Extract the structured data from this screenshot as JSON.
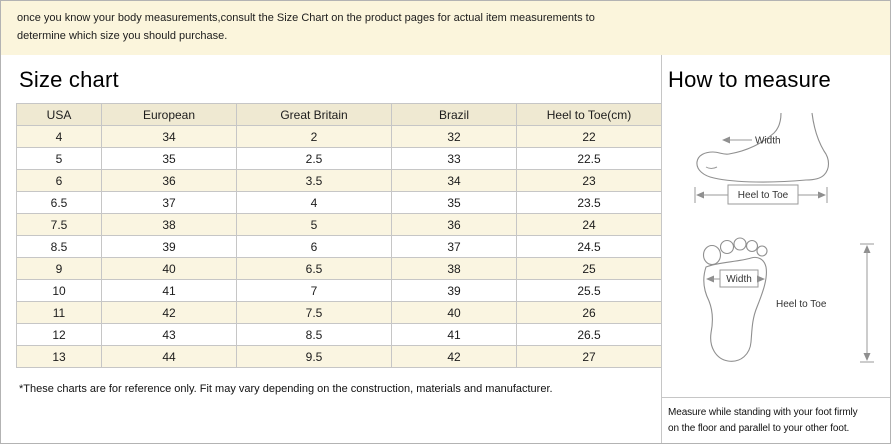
{
  "colors": {
    "note_bg": "#fbf5dc",
    "header_bg": "#efe9d2",
    "alt_row_bg": "#faf5e1",
    "border": "#c6c6c6"
  },
  "top_note": {
    "lines": [
      "once you know your body measurements,consult the Size Chart on the product pages for actual item measurements to",
      "determine which size you should purchase."
    ]
  },
  "size_chart": {
    "title": "Size chart",
    "footnote": "*These charts are for reference only. Fit may vary depending on the construction, materials and manufacturer."
  },
  "how_to_measure": {
    "title": "How to measure",
    "diagram_labels": {
      "side_width": "Width",
      "side_heel_to_toe": "Heel to Toe",
      "bottom_width": "Width",
      "bottom_heel_to_toe": "Heel to Toe"
    },
    "instruction_lines": [
      "Measure while standing with your foot firmly",
      "on the floor and parallel to your other foot."
    ]
  },
  "chart_data": {
    "type": "table",
    "title": "Size chart",
    "columns": [
      "USA",
      "European",
      "Great Britain",
      "Brazil",
      "Heel to Toe(cm)"
    ],
    "rows": [
      [
        "4",
        "34",
        "2",
        "32",
        "22"
      ],
      [
        "5",
        "35",
        "2.5",
        "33",
        "22.5"
      ],
      [
        "6",
        "36",
        "3.5",
        "34",
        "23"
      ],
      [
        "6.5",
        "37",
        "4",
        "35",
        "23.5"
      ],
      [
        "7.5",
        "38",
        "5",
        "36",
        "24"
      ],
      [
        "8.5",
        "39",
        "6",
        "37",
        "24.5"
      ],
      [
        "9",
        "40",
        "6.5",
        "38",
        "25"
      ],
      [
        "10",
        "41",
        "7",
        "39",
        "25.5"
      ],
      [
        "11",
        "42",
        "7.5",
        "40",
        "26"
      ],
      [
        "12",
        "43",
        "8.5",
        "41",
        "26.5"
      ],
      [
        "13",
        "44",
        "9.5",
        "42",
        "27"
      ]
    ]
  }
}
